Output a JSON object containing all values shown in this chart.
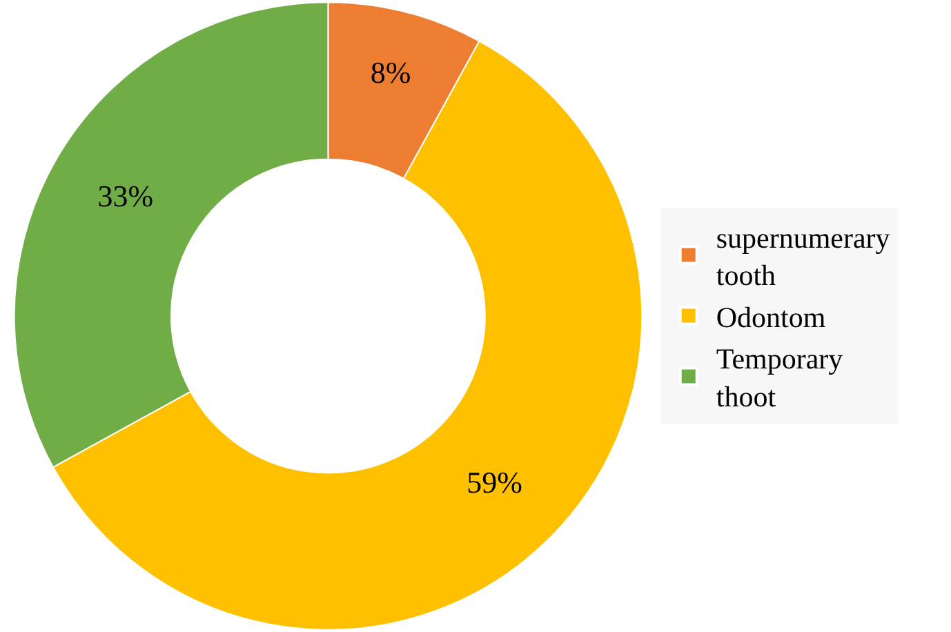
{
  "chart_data": {
    "type": "donut",
    "categories": [
      "supernumerary tooth",
      "Odontom",
      "Temporary thoot"
    ],
    "values": [
      8,
      59,
      33
    ],
    "colors": [
      "#ed7d31",
      "#ffc000",
      "#70ad47"
    ],
    "value_labels": [
      "8%",
      "59%",
      "33%"
    ],
    "legend": "right"
  }
}
